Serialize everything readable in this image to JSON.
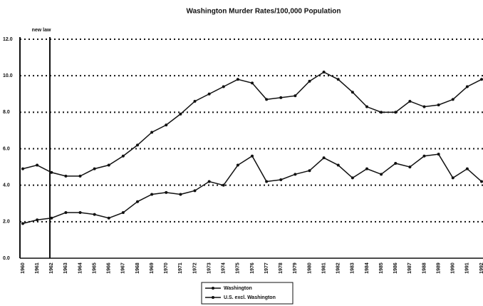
{
  "chart_data": {
    "type": "line",
    "title": "Washington Murder Rates/100,000 Population",
    "annotation": "new law",
    "categories": [
      "1960",
      "1961",
      "1962",
      "1963",
      "1964",
      "1965",
      "1966",
      "1967",
      "1968",
      "1969",
      "1970",
      "1971",
      "1972",
      "1973",
      "1974",
      "1975",
      "1976",
      "1977",
      "1978",
      "1979",
      "1980",
      "1981",
      "1982",
      "1983",
      "1984",
      "1985",
      "1986",
      "1987",
      "1988",
      "1989",
      "1990",
      "1991",
      "1992"
    ],
    "series": [
      {
        "name": "Washington",
        "color": "#111111",
        "values": [
          1.9,
          2.1,
          2.2,
          2.5,
          2.5,
          2.4,
          2.2,
          2.5,
          3.1,
          3.5,
          3.6,
          3.5,
          3.7,
          4.2,
          4.0,
          5.1,
          5.6,
          4.2,
          4.3,
          4.6,
          4.8,
          5.5,
          5.1,
          4.4,
          4.9,
          4.6,
          5.2,
          5.0,
          5.6,
          5.7,
          4.4,
          4.9,
          4.2
        ]
      },
      {
        "name": "U.S. excl. Washington",
        "color": "#111111",
        "values": [
          4.9,
          5.1,
          4.7,
          4.5,
          4.5,
          4.9,
          5.1,
          5.6,
          6.2,
          6.9,
          7.3,
          7.9,
          8.6,
          9.0,
          9.4,
          9.8,
          9.6,
          8.7,
          8.8,
          8.9,
          9.7,
          10.2,
          9.8,
          9.1,
          8.3,
          8.0,
          8.0,
          8.6,
          8.3,
          8.4,
          8.7,
          9.4,
          9.8
        ]
      }
    ],
    "ylim": [
      0,
      12
    ],
    "yticks": [
      {
        "value": 0,
        "label": "0.0"
      },
      {
        "value": 2,
        "label": "2.0"
      },
      {
        "value": 4,
        "label": "4.0"
      },
      {
        "value": 6,
        "label": "6.0"
      },
      {
        "value": 8,
        "label": "8.0"
      },
      {
        "value": 10,
        "label": "10.0"
      },
      {
        "value": 12,
        "label": "12.0"
      }
    ],
    "grid": true,
    "legend": "bottom"
  }
}
